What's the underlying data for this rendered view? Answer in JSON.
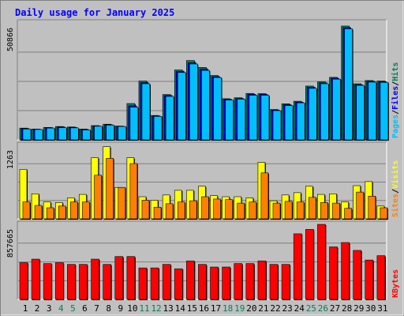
{
  "chart_data": [
    {
      "type": "bar",
      "title": "Daily usage for January 2025",
      "categories": [
        "1",
        "2",
        "3",
        "4",
        "5",
        "6",
        "7",
        "8",
        "9",
        "10",
        "11",
        "12",
        "13",
        "14",
        "15",
        "16",
        "17",
        "18",
        "19",
        "20",
        "21",
        "22",
        "23",
        "24",
        "25",
        "26",
        "27",
        "28",
        "29",
        "30",
        "31"
      ],
      "weekend_days": [
        "4",
        "5",
        "11",
        "12",
        "18",
        "19",
        "25",
        "26"
      ],
      "ymax_label": "50866",
      "ylim": [
        0,
        50866
      ],
      "legend": [
        "Pages",
        "Files",
        "Hits"
      ],
      "series": [
        {
          "name": "Hits",
          "color": "#00805C",
          "values": [
            5100,
            4700,
            5400,
            5800,
            5600,
            4700,
            6200,
            6800,
            6000,
            15800,
            25600,
            10600,
            19700,
            30400,
            34500,
            31500,
            28000,
            17900,
            18300,
            20200,
            20100,
            13200,
            15700,
            16800,
            23400,
            25200,
            27200,
            49500,
            24400,
            25800,
            25600
          ]
        },
        {
          "name": "Files",
          "color": "#0000FF",
          "values": [
            4900,
            4600,
            5300,
            5600,
            5400,
            4500,
            6000,
            6600,
            5900,
            14800,
            24900,
            10400,
            19300,
            29800,
            33500,
            30800,
            27500,
            17600,
            18000,
            19800,
            19800,
            13000,
            15300,
            16400,
            22900,
            24800,
            26800,
            48800,
            24000,
            25500,
            25300
          ]
        },
        {
          "name": "Pages",
          "color": "#00BFFF",
          "values": [
            4700,
            4500,
            5100,
            5300,
            5200,
            4300,
            5900,
            6400,
            5800,
            14200,
            24400,
            10200,
            18900,
            29300,
            33000,
            30200,
            27100,
            17300,
            17700,
            19400,
            19400,
            12700,
            14900,
            16100,
            22400,
            24400,
            26400,
            48300,
            23700,
            25100,
            25000
          ]
        }
      ]
    },
    {
      "type": "bar",
      "ymax_label": "1263",
      "ylim": [
        0,
        1263
      ],
      "legend": [
        "Sites",
        "Visits"
      ],
      "series": [
        {
          "name": "Visits",
          "color": "#FFFF00",
          "values": [
            850,
            430,
            290,
            280,
            360,
            420,
            1050,
            1240,
            540,
            1050,
            380,
            320,
            410,
            490,
            490,
            560,
            400,
            380,
            380,
            360,
            970,
            310,
            410,
            450,
            560,
            420,
            430,
            290,
            570,
            640,
            220
          ]
        },
        {
          "name": "Sites",
          "color": "#FF8000",
          "values": [
            290,
            230,
            190,
            220,
            290,
            290,
            750,
            1040,
            540,
            950,
            320,
            200,
            260,
            290,
            310,
            380,
            340,
            330,
            270,
            290,
            790,
            270,
            300,
            290,
            370,
            280,
            270,
            180,
            460,
            390,
            190
          ]
        }
      ]
    },
    {
      "type": "bar",
      "ymax_label": "857665",
      "ylim": [
        0,
        857665
      ],
      "legend": [
        "KBytes"
      ],
      "series": [
        {
          "name": "KBytes",
          "color": "#FF0000",
          "values": [
            420000,
            460000,
            410000,
            420000,
            400000,
            400000,
            460000,
            400000,
            490000,
            490000,
            360000,
            360000,
            400000,
            350000,
            440000,
            400000,
            370000,
            370000,
            410000,
            410000,
            440000,
            400000,
            400000,
            750000,
            800000,
            860000,
            600000,
            650000,
            560000,
            450000,
            500000
          ]
        }
      ]
    }
  ]
}
